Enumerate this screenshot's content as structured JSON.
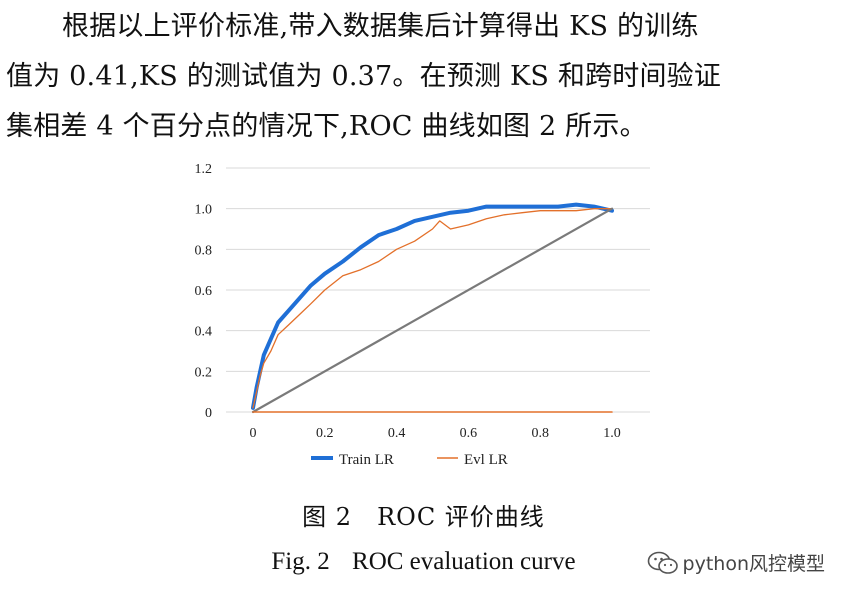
{
  "paragraph": {
    "lines": [
      "根据以上评价标准,带入数据集后计算得出 KS 的训练",
      "值为 0.41,KS 的测试值为 0.37。在预测 KS 和跨时间验证",
      "集相差 4 个百分点的情况下,ROC 曲线如图 2 所示。"
    ]
  },
  "caption": {
    "cn": "图 2　ROC 评价曲线",
    "en_label": "Fig. 2",
    "en_title": "ROC evaluation curve"
  },
  "watermark": {
    "text": "python风控模型",
    "icon": "wechat-icon"
  },
  "chart_data": {
    "type": "line",
    "xlabel": "",
    "ylabel": "",
    "xlim": [
      0,
      1.0
    ],
    "ylim": [
      0,
      1.2
    ],
    "x_ticks": [
      "0",
      "0.2",
      "0.4",
      "0.6",
      "0.8",
      "1.0"
    ],
    "y_ticks": [
      "0",
      "0.2",
      "0.4",
      "0.6",
      "0.8",
      "1.0",
      "1.2"
    ],
    "grid": "horizontal",
    "legend": "bottom",
    "series": [
      {
        "name": "Train LR",
        "color": "#1f6fd6",
        "x": [
          0,
          0.01,
          0.02,
          0.03,
          0.05,
          0.07,
          0.1,
          0.13,
          0.16,
          0.2,
          0.25,
          0.3,
          0.35,
          0.4,
          0.45,
          0.5,
          0.55,
          0.6,
          0.65,
          0.7,
          0.75,
          0.8,
          0.85,
          0.9,
          0.95,
          1.0
        ],
        "y": [
          0.02,
          0.12,
          0.2,
          0.28,
          0.36,
          0.44,
          0.5,
          0.56,
          0.62,
          0.68,
          0.74,
          0.81,
          0.87,
          0.9,
          0.94,
          0.96,
          0.98,
          0.99,
          1.01,
          1.01,
          1.01,
          1.01,
          1.01,
          1.02,
          1.01,
          0.99
        ]
      },
      {
        "name": "Evl LR",
        "color": "#e3702a",
        "x": [
          0,
          0.01,
          0.02,
          0.03,
          0.05,
          0.07,
          0.1,
          0.13,
          0.16,
          0.2,
          0.25,
          0.3,
          0.35,
          0.4,
          0.45,
          0.5,
          0.52,
          0.55,
          0.6,
          0.65,
          0.7,
          0.75,
          0.8,
          0.85,
          0.9,
          0.95,
          1.0
        ],
        "y": [
          0.02,
          0.1,
          0.18,
          0.24,
          0.3,
          0.38,
          0.43,
          0.48,
          0.53,
          0.6,
          0.67,
          0.7,
          0.74,
          0.8,
          0.84,
          0.9,
          0.94,
          0.9,
          0.92,
          0.95,
          0.97,
          0.98,
          0.99,
          0.99,
          0.99,
          1.0,
          1.0
        ]
      },
      {
        "name": "",
        "color": "#7a7a7a",
        "x": [
          0,
          1.0
        ],
        "y": [
          0,
          1.0
        ]
      },
      {
        "name": "",
        "color": "#e3702a",
        "x": [
          0,
          1.0
        ],
        "y": [
          0,
          0
        ]
      }
    ]
  }
}
